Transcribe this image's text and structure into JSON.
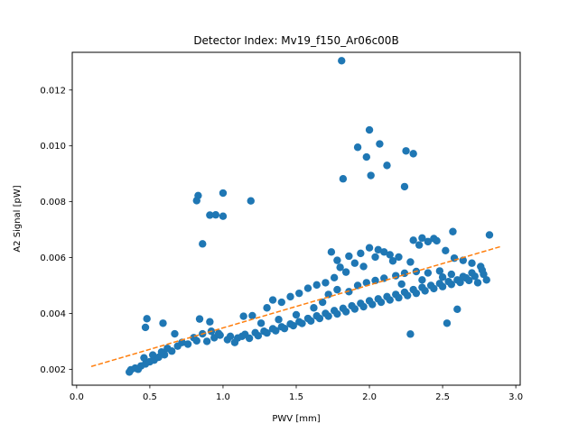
{
  "chart_data": {
    "type": "scatter",
    "title": "Detector Index: Mv19_f150_Ar06c00B",
    "xlabel": "PWV [mm]",
    "ylabel": "A2 Signal [pW]",
    "xlim": [
      -0.03,
      3.03
    ],
    "ylim": [
      0.00143,
      0.01335
    ],
    "xticks": [
      0.0,
      0.5,
      1.0,
      1.5,
      2.0,
      2.5,
      3.0
    ],
    "xtick_labels": [
      "0.0",
      "0.5",
      "1.0",
      "1.5",
      "2.0",
      "2.5",
      "3.0"
    ],
    "yticks": [
      0.002,
      0.004,
      0.006,
      0.008,
      0.01,
      0.012
    ],
    "ytick_labels": [
      "0.002",
      "0.004",
      "0.006",
      "0.008",
      "0.010",
      "0.012"
    ],
    "grid": false,
    "colors": {
      "points": "#1f77b4",
      "fit": "#ff7f0e"
    },
    "series": [
      {
        "name": "data",
        "type": "scatter",
        "points": [
          [
            1.81,
            0.01305
          ],
          [
            2.0,
            0.01057
          ],
          [
            1.92,
            0.00995
          ],
          [
            2.07,
            0.01007
          ],
          [
            2.3,
            0.00972
          ],
          [
            2.25,
            0.00982
          ],
          [
            1.98,
            0.0096
          ],
          [
            2.12,
            0.0093
          ],
          [
            2.01,
            0.00894
          ],
          [
            1.82,
            0.00882
          ],
          [
            2.24,
            0.00854
          ],
          [
            0.83,
            0.00822
          ],
          [
            0.82,
            0.00804
          ],
          [
            1.0,
            0.00831
          ],
          [
            1.19,
            0.00803
          ],
          [
            0.91,
            0.00752
          ],
          [
            0.95,
            0.00753
          ],
          [
            1.0,
            0.00748
          ],
          [
            0.86,
            0.00649
          ],
          [
            0.37,
            0.00198
          ],
          [
            0.4,
            0.00204
          ],
          [
            0.44,
            0.00212
          ],
          [
            0.47,
            0.00219
          ],
          [
            0.5,
            0.00227
          ],
          [
            0.53,
            0.00233
          ],
          [
            0.56,
            0.00243
          ],
          [
            0.6,
            0.00252
          ],
          [
            0.65,
            0.00265
          ],
          [
            0.69,
            0.00283
          ],
          [
            0.76,
            0.0029
          ],
          [
            0.82,
            0.00302
          ],
          [
            0.89,
            0.003
          ],
          [
            0.94,
            0.00313
          ],
          [
            0.98,
            0.00322
          ],
          [
            1.05,
            0.00318
          ],
          [
            1.1,
            0.00312
          ],
          [
            1.15,
            0.00325
          ],
          [
            1.22,
            0.00331
          ],
          [
            1.28,
            0.00336
          ],
          [
            1.34,
            0.00345
          ],
          [
            1.4,
            0.00352
          ],
          [
            1.46,
            0.00362
          ],
          [
            1.52,
            0.0037
          ],
          [
            1.58,
            0.00382
          ],
          [
            1.64,
            0.00391
          ],
          [
            1.7,
            0.004
          ],
          [
            1.76,
            0.0041
          ],
          [
            1.82,
            0.00418
          ],
          [
            1.88,
            0.00427
          ],
          [
            1.94,
            0.00436
          ],
          [
            2.0,
            0.00445
          ],
          [
            2.06,
            0.00452
          ],
          [
            2.12,
            0.0046
          ],
          [
            2.18,
            0.00468
          ],
          [
            2.24,
            0.00476
          ],
          [
            2.3,
            0.00485
          ],
          [
            2.36,
            0.00493
          ],
          [
            2.42,
            0.005
          ],
          [
            2.48,
            0.00507
          ],
          [
            2.54,
            0.00514
          ],
          [
            2.6,
            0.0052
          ],
          [
            2.66,
            0.00527
          ],
          [
            2.72,
            0.00533
          ],
          [
            2.78,
            0.0054
          ],
          [
            0.36,
            0.0019
          ],
          [
            0.42,
            0.002
          ],
          [
            0.46,
            0.00241
          ],
          [
            0.52,
            0.00251
          ],
          [
            0.58,
            0.00262
          ],
          [
            0.62,
            0.00275
          ],
          [
            0.72,
            0.00296
          ],
          [
            0.8,
            0.00313
          ],
          [
            0.86,
            0.00327
          ],
          [
            0.92,
            0.00336
          ],
          [
            0.97,
            0.00328
          ],
          [
            1.03,
            0.00306
          ],
          [
            1.08,
            0.00296
          ],
          [
            1.13,
            0.00318
          ],
          [
            1.18,
            0.00311
          ],
          [
            1.24,
            0.0032
          ],
          [
            1.3,
            0.0033
          ],
          [
            1.36,
            0.00338
          ],
          [
            1.42,
            0.00346
          ],
          [
            1.48,
            0.00356
          ],
          [
            1.54,
            0.00364
          ],
          [
            1.6,
            0.00373
          ],
          [
            1.66,
            0.00382
          ],
          [
            1.72,
            0.0039
          ],
          [
            1.78,
            0.00398
          ],
          [
            1.84,
            0.00406
          ],
          [
            1.9,
            0.00416
          ],
          [
            1.96,
            0.00424
          ],
          [
            2.02,
            0.00432
          ],
          [
            2.08,
            0.0044
          ],
          [
            2.14,
            0.00448
          ],
          [
            2.2,
            0.00456
          ],
          [
            2.26,
            0.00464
          ],
          [
            2.32,
            0.00472
          ],
          [
            2.38,
            0.00481
          ],
          [
            2.44,
            0.00489
          ],
          [
            2.5,
            0.00496
          ],
          [
            2.56,
            0.00504
          ],
          [
            2.62,
            0.00511
          ],
          [
            2.68,
            0.00518
          ],
          [
            0.48,
            0.00381
          ],
          [
            0.47,
            0.0035
          ],
          [
            0.59,
            0.00365
          ],
          [
            0.67,
            0.00327
          ],
          [
            0.84,
            0.0038
          ],
          [
            0.91,
            0.0037
          ],
          [
            1.14,
            0.0039
          ],
          [
            1.2,
            0.00392
          ],
          [
            1.3,
            0.0042
          ],
          [
            1.34,
            0.00448
          ],
          [
            1.4,
            0.0044
          ],
          [
            1.46,
            0.0046
          ],
          [
            1.52,
            0.00472
          ],
          [
            1.58,
            0.0049
          ],
          [
            1.64,
            0.00502
          ],
          [
            1.7,
            0.0051
          ],
          [
            1.76,
            0.00528
          ],
          [
            1.8,
            0.00565
          ],
          [
            1.84,
            0.00548
          ],
          [
            1.9,
            0.0058
          ],
          [
            1.96,
            0.00568
          ],
          [
            2.0,
            0.00635
          ],
          [
            2.04,
            0.00602
          ],
          [
            2.1,
            0.0062
          ],
          [
            2.16,
            0.00588
          ],
          [
            2.2,
            0.00602
          ],
          [
            2.28,
            0.00584
          ],
          [
            2.34,
            0.00645
          ],
          [
            2.4,
            0.00657
          ],
          [
            2.46,
            0.0066
          ],
          [
            2.52,
            0.00625
          ],
          [
            2.58,
            0.00598
          ],
          [
            2.64,
            0.0059
          ],
          [
            2.7,
            0.0058
          ],
          [
            2.76,
            0.00568
          ],
          [
            1.74,
            0.0062
          ],
          [
            1.78,
            0.0059
          ],
          [
            1.86,
            0.00605
          ],
          [
            1.94,
            0.00615
          ],
          [
            2.06,
            0.00628
          ],
          [
            2.14,
            0.0061
          ],
          [
            2.3,
            0.00662
          ],
          [
            2.36,
            0.0067
          ],
          [
            2.44,
            0.00668
          ],
          [
            2.57,
            0.00693
          ],
          [
            2.82,
            0.00681
          ],
          [
            2.8,
            0.0052
          ],
          [
            2.74,
            0.0051
          ],
          [
            2.53,
            0.00365
          ],
          [
            2.6,
            0.00415
          ],
          [
            2.28,
            0.00326
          ],
          [
            1.26,
            0.00365
          ],
          [
            1.38,
            0.00378
          ],
          [
            1.5,
            0.00395
          ],
          [
            1.62,
            0.0042
          ],
          [
            1.68,
            0.0044
          ],
          [
            1.72,
            0.00468
          ],
          [
            1.78,
            0.00485
          ],
          [
            1.86,
            0.00478
          ],
          [
            1.92,
            0.005
          ],
          [
            1.98,
            0.0051
          ],
          [
            2.04,
            0.00518
          ],
          [
            2.1,
            0.00526
          ],
          [
            2.18,
            0.00535
          ],
          [
            2.24,
            0.00544
          ],
          [
            2.32,
            0.0055
          ],
          [
            2.4,
            0.00545
          ],
          [
            2.48,
            0.00552
          ],
          [
            2.56,
            0.0054
          ],
          [
            2.64,
            0.00532
          ],
          [
            2.7,
            0.00545
          ],
          [
            2.77,
            0.00555
          ],
          [
            2.22,
            0.00505
          ],
          [
            2.36,
            0.0052
          ],
          [
            2.5,
            0.0053
          ]
        ]
      },
      {
        "name": "fit",
        "type": "line",
        "style": "dashed",
        "points": [
          [
            0.1,
            0.0021
          ],
          [
            2.9,
            0.0064
          ]
        ]
      }
    ]
  }
}
